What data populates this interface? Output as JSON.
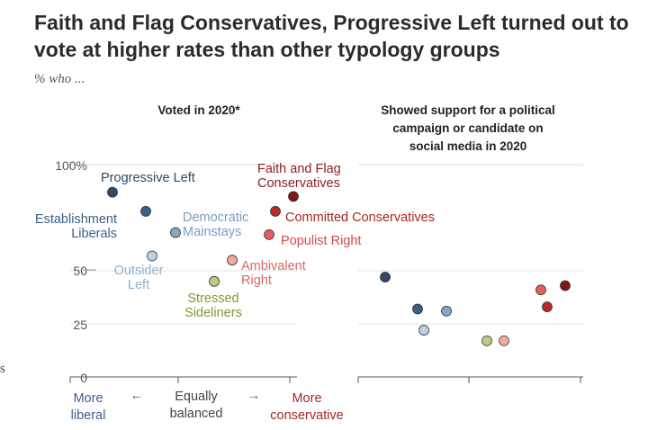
{
  "title": "Faith and Flag Conservatives, Progressive Left turned out to vote at higher rates than other typology groups",
  "subtitle": "% who ...",
  "stray_char": "s",
  "chart_data": {
    "type": "scatter",
    "y_ticks": [
      "100%",
      "50",
      "25",
      "0"
    ],
    "y_tick_values": [
      100,
      50,
      25,
      0
    ],
    "ylim": [
      0,
      100
    ],
    "x_axis": {
      "left_label": "More liberal",
      "left_label_lines": [
        "More",
        "liberal"
      ],
      "center_label_lines": [
        "Equally",
        "balanced"
      ],
      "right_label_lines": [
        "More",
        "conservative"
      ],
      "left_arrow": "←",
      "right_arrow": "→"
    },
    "panels": [
      {
        "title_lines": [
          "Voted in 2020*"
        ],
        "points": [
          {
            "group": "Progressive Left",
            "label_lines": [
              "Progressive Left"
            ],
            "x": 1,
            "y": 87,
            "color": "#2f4b66",
            "label_color": "#2f4b66"
          },
          {
            "group": "Establishment Liberals",
            "label_lines": [
              "Establishment",
              "Liberals"
            ],
            "x": 2,
            "y": 78,
            "color": "#3a5f86",
            "label_color": "#3a5f86"
          },
          {
            "group": "Democratic Mainstays",
            "label_lines": [
              "Democratic",
              "Mainstays"
            ],
            "x": 3,
            "y": 68,
            "color": "#86a6c4",
            "label_color": "#7b9cc0"
          },
          {
            "group": "Outsider Left",
            "label_lines": [
              "Outsider",
              "Left"
            ],
            "x": 4,
            "y": 57,
            "color": "#bcd1e3",
            "label_color": "#8fb0cc"
          },
          {
            "group": "Stressed Sideliners",
            "label_lines": [
              "Stressed",
              "Sideliners"
            ],
            "x": 5,
            "y": 45,
            "color": "#b9cc86",
            "label_color": "#7f9a3a"
          },
          {
            "group": "Ambivalent Right",
            "label_lines": [
              "Ambivalent",
              "Right"
            ],
            "x": 6,
            "y": 55,
            "color": "#f2a7a3",
            "label_color": "#d66a66"
          },
          {
            "group": "Populist Right",
            "label_lines": [
              "Populist Right"
            ],
            "x": 7,
            "y": 67,
            "color": "#e0605d",
            "label_color": "#d44a48"
          },
          {
            "group": "Committed Conservatives",
            "label_lines": [
              "Committed Conservatives"
            ],
            "x": 8,
            "y": 78,
            "color": "#b92a2a",
            "label_color": "#a62626"
          },
          {
            "group": "Faith and Flag Conservatives",
            "label_lines": [
              "Faith and Flag",
              "Conservatives"
            ],
            "x": 9,
            "y": 85,
            "color": "#801818",
            "label_color": "#8b1e1e"
          }
        ]
      },
      {
        "title_lines": [
          "Showed support for a political",
          "campaign or candidate on",
          "social media in 2020"
        ],
        "points": [
          {
            "group": "Progressive Left",
            "x": 1,
            "y": 47,
            "color": "#2f4b66"
          },
          {
            "group": "Establishment Liberals",
            "x": 2,
            "y": 32,
            "color": "#3a5f86"
          },
          {
            "group": "Democratic Mainstays",
            "x": 3,
            "y": 31,
            "color": "#86a6c4"
          },
          {
            "group": "Outsider Left",
            "x": 4,
            "y": 22,
            "color": "#bcd1e3"
          },
          {
            "group": "Stressed Sideliners",
            "x": 5,
            "y": 17,
            "color": "#b9cc86"
          },
          {
            "group": "Ambivalent Right",
            "x": 6,
            "y": 17,
            "color": "#f2a7a3"
          },
          {
            "group": "Populist Right",
            "x": 7,
            "y": 41,
            "color": "#e0605d"
          },
          {
            "group": "Committed Conservatives",
            "x": 8,
            "y": 33,
            "color": "#b92a2a"
          },
          {
            "group": "Faith and Flag Conservatives",
            "x": 9,
            "y": 43,
            "color": "#801818"
          }
        ]
      }
    ]
  }
}
